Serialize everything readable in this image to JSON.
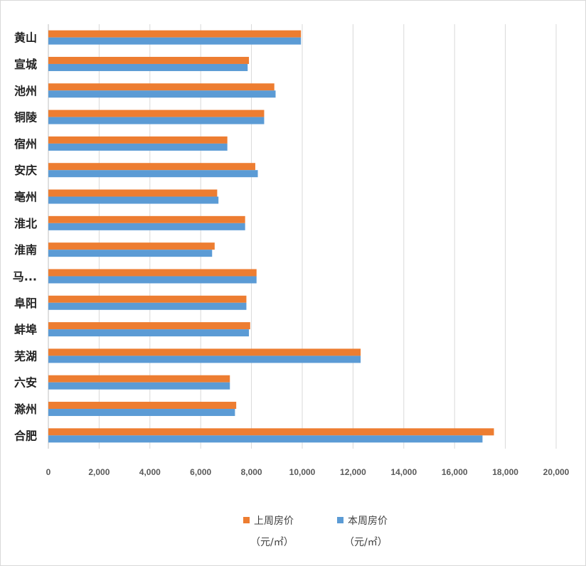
{
  "chart_data": {
    "type": "bar",
    "orientation": "horizontal",
    "categories": [
      "黄山",
      "宣城",
      "池州",
      "铜陵",
      "宿州",
      "安庆",
      "亳州",
      "淮北",
      "淮南",
      "马...",
      "阜阳",
      "蚌埠",
      "芜湖",
      "六安",
      "滁州",
      "合肥"
    ],
    "series": [
      {
        "name": "上周房价",
        "unit": "（元/㎡）",
        "color": "#ED7D31",
        "values": [
          9950,
          7900,
          8900,
          8500,
          7050,
          8150,
          6650,
          7750,
          6550,
          8200,
          7800,
          7950,
          12300,
          7150,
          7400,
          17550
        ]
      },
      {
        "name": "本周房价",
        "unit": "（元/㎡）",
        "color": "#5B9BD5",
        "values": [
          9950,
          7850,
          8950,
          8500,
          7050,
          8250,
          6700,
          7750,
          6450,
          8200,
          7800,
          7900,
          12300,
          7150,
          7350,
          17100
        ]
      }
    ],
    "xlim": [
      0,
      20000
    ],
    "x_ticks": [
      "0",
      "2,000",
      "4,000",
      "6,000",
      "8,000",
      "10,000",
      "12,000",
      "14,000",
      "16,000",
      "18,000",
      "20,000"
    ],
    "grid": "vertical",
    "legend_position": "bottom"
  }
}
